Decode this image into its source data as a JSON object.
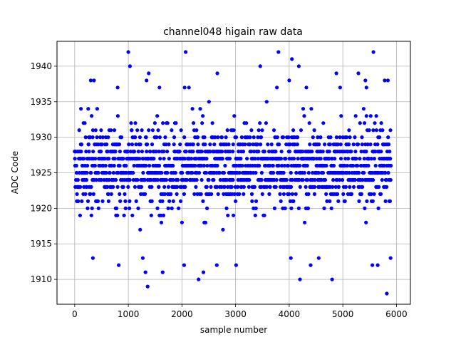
{
  "chart_data": {
    "type": "scatter",
    "title": "channel048 higain raw data",
    "xlabel": "sample number",
    "ylabel": "ADC Code",
    "xlim": [
      -330,
      6260
    ],
    "ylim": [
      1906.5,
      1943.5
    ],
    "xticks": [
      0,
      1000,
      2000,
      3000,
      4000,
      5000,
      6000
    ],
    "yticks": [
      1910,
      1915,
      1920,
      1925,
      1930,
      1935,
      1940
    ],
    "grid": true,
    "marker_color": "#0000ff",
    "n_samples": 5900,
    "dense_range": [
      1914,
      1935
    ],
    "series": [
      {
        "name": "",
        "outliers": [
          [
            1000,
            1942
          ],
          [
            2070,
            1942
          ],
          [
            3800,
            1942
          ],
          [
            5570,
            1942
          ],
          [
            1030,
            1940
          ],
          [
            3460,
            1940
          ],
          [
            4180,
            1940
          ],
          [
            4050,
            1941
          ],
          [
            300,
            1938
          ],
          [
            360,
            1938
          ],
          [
            1380,
            1939
          ],
          [
            1340,
            1938
          ],
          [
            2660,
            1939
          ],
          [
            4000,
            1938
          ],
          [
            4880,
            1939
          ],
          [
            5290,
            1939
          ],
          [
            5420,
            1938
          ],
          [
            5780,
            1938
          ],
          [
            5840,
            1938
          ],
          [
            800,
            1937
          ],
          [
            1580,
            1937
          ],
          [
            2050,
            1937
          ],
          [
            2130,
            1937
          ],
          [
            3770,
            1937
          ],
          [
            4320,
            1937
          ],
          [
            4950,
            1937
          ],
          [
            5440,
            1937
          ],
          [
            340,
            1913
          ],
          [
            1270,
            1913
          ],
          [
            4030,
            1913
          ],
          [
            4550,
            1913
          ],
          [
            5890,
            1913
          ],
          [
            820,
            1912
          ],
          [
            2040,
            1912
          ],
          [
            2650,
            1912
          ],
          [
            3010,
            1912
          ],
          [
            4400,
            1912
          ],
          [
            5550,
            1912
          ],
          [
            5650,
            1912
          ],
          [
            1320,
            1911
          ],
          [
            1640,
            1911
          ],
          [
            2400,
            1911
          ],
          [
            2310,
            1910
          ],
          [
            4200,
            1910
          ],
          [
            4800,
            1910
          ],
          [
            1360,
            1909
          ],
          [
            5820,
            1908
          ]
        ]
      }
    ]
  }
}
